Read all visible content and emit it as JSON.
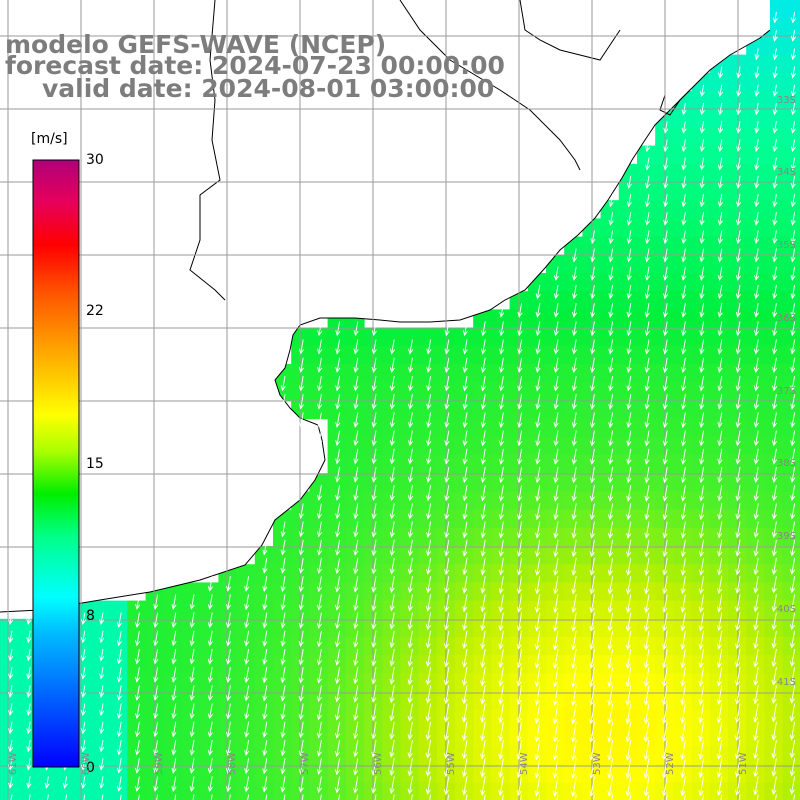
{
  "title": {
    "line1": "modelo GEFS-WAVE (NCEP)",
    "line2": "forecast date: 2024-07-23 00:00:00",
    "line3": "valid date: 2024-08-01 03:00:00"
  },
  "colorbar": {
    "unit": "[m/s]",
    "tick_labels": [
      "30",
      "22",
      "15",
      "8",
      "0"
    ],
    "tick_values": [
      30,
      22,
      15,
      8,
      0
    ],
    "colors": [
      "#0000ff",
      "#00aaff",
      "#00ffff",
      "#00ff66",
      "#00cc00",
      "#99ff00",
      "#ffff00",
      "#ffaa00",
      "#ff6600",
      "#ff0000",
      "#e6007a",
      "#b0006e"
    ]
  },
  "map": {
    "lat_labels": [
      "33S",
      "34S",
      "35S",
      "36S",
      "37S",
      "38S",
      "39S",
      "40S",
      "41S"
    ],
    "lon_labels": [
      "61W",
      "60W",
      "59W",
      "58W",
      "57W",
      "56W",
      "55W",
      "54W",
      "53W",
      "52W",
      "51W"
    ],
    "land_color": "#ffffff",
    "arrow_color": "#ffffff",
    "wind_direction": "from north-northeast (arrows pointing south-southwest)",
    "speed_range_mps": [
      7,
      16
    ]
  }
}
